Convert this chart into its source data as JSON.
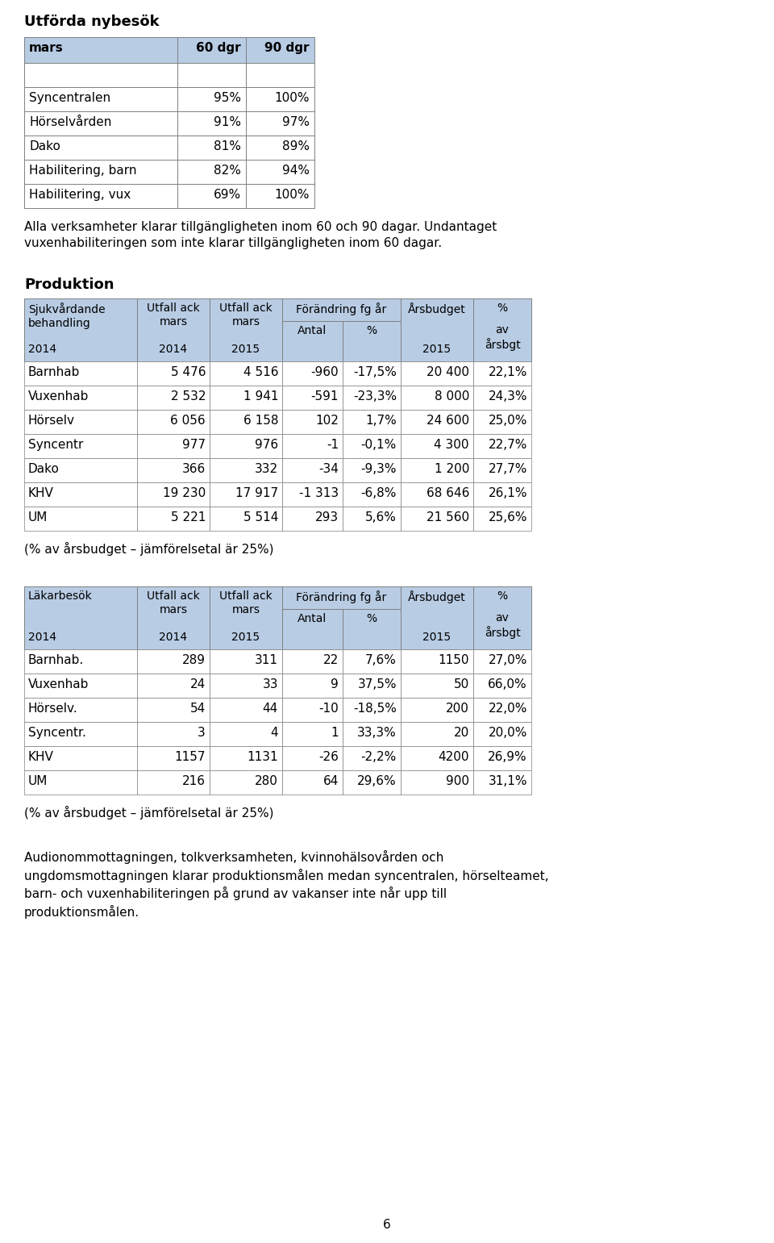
{
  "page_bg": "#ffffff",
  "header_bg": "#b8cce4",
  "table_border": "#808080",
  "text_color": "#000000",
  "section1_title": "Utförda nybesök",
  "table1_header_row": [
    "mars",
    "60 dgr",
    "90 dgr"
  ],
  "table1_rows": [
    [
      "",
      "",
      ""
    ],
    [
      "Syncentralen",
      "95%",
      "100%"
    ],
    [
      "Hörselvården",
      "91%",
      "97%"
    ],
    [
      "Dako",
      "81%",
      "89%"
    ],
    [
      "Habilitering, barn",
      "82%",
      "94%"
    ],
    [
      "Habilitering, vux",
      "69%",
      "100%"
    ]
  ],
  "text1": "Alla verksamheter klarar tillgängligheten inom 60 och 90 dagar. Undantaget\nvuxenhabiliteringen som inte klarar tillgängligheten inom 60 dagar.",
  "section2_title": "Produktion",
  "table2_rows": [
    [
      "Barnhab",
      "5 476",
      "4 516",
      "-960",
      "-17,5%",
      "20 400",
      "22,1%"
    ],
    [
      "Vuxenhab",
      "2 532",
      "1 941",
      "-591",
      "-23,3%",
      "8 000",
      "24,3%"
    ],
    [
      "Hörselv",
      "6 056",
      "6 158",
      "102",
      "1,7%",
      "24 600",
      "25,0%"
    ],
    [
      "Syncentr",
      "977",
      "976",
      "-1",
      "-0,1%",
      "4 300",
      "22,7%"
    ],
    [
      "Dako",
      "366",
      "332",
      "-34",
      "-9,3%",
      "1 200",
      "27,7%"
    ],
    [
      "KHV",
      "19 230",
      "17 917",
      "-1 313",
      "-6,8%",
      "68 646",
      "26,1%"
    ],
    [
      "UM",
      "5 221",
      "5 514",
      "293",
      "5,6%",
      "21 560",
      "25,6%"
    ]
  ],
  "text2": "(% av årsbudget – jämförelsetal är 25%)",
  "table3_rows": [
    [
      "Barnhab.",
      "289",
      "311",
      "22",
      "7,6%",
      "1150",
      "27,0%"
    ],
    [
      "Vuxenhab",
      "24",
      "33",
      "9",
      "37,5%",
      "50",
      "66,0%"
    ],
    [
      "Hörselv.",
      "54",
      "44",
      "-10",
      "-18,5%",
      "200",
      "22,0%"
    ],
    [
      "Syncentr.",
      "3",
      "4",
      "1",
      "33,3%",
      "20",
      "20,0%"
    ],
    [
      "KHV",
      "1157",
      "1131",
      "-26",
      "-2,2%",
      "4200",
      "26,9%"
    ],
    [
      "UM",
      "216",
      "280",
      "64",
      "29,6%",
      "900",
      "31,1%"
    ]
  ],
  "text3": "(% av årsbudget – jämförelsetal är 25%)",
  "text4": "Audionommottagningen, tolkverksamheten, kvinnohälsovården och\nungdomsmottagningen klarar produktionsmålen medan syncentralen, hörselteamet,\nbarn- och vuxenhabiliteringen på grund av vakanser inte når upp till\nproduktionsmålen.",
  "footer": "6"
}
